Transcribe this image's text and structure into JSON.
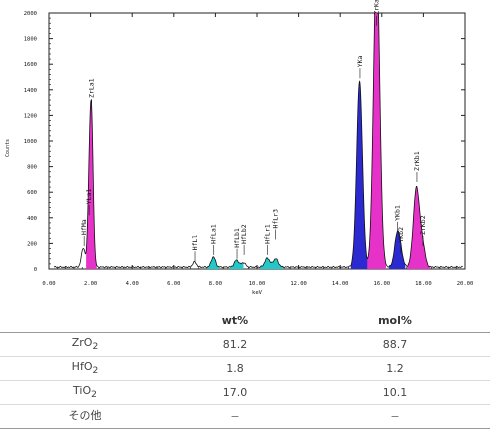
{
  "chart_data": {
    "type": "area",
    "title": "",
    "xlabel": "keV",
    "ylabel": "Counts",
    "xlim": [
      0,
      20
    ],
    "ylim": [
      0,
      2000
    ],
    "x_ticks": [
      "0.00",
      "2.00",
      "4.00",
      "6.00",
      "8.00",
      "10.00",
      "12.00",
      "14.00",
      "16.00",
      "18.00",
      "20.00"
    ],
    "y_ticks": [
      "0",
      "200",
      "400",
      "600",
      "800",
      "1000",
      "1200",
      "1400",
      "1600",
      "1800",
      "2000"
    ],
    "background_counts": 15,
    "colors": {
      "Zr": "#e632c8",
      "Hf": "#25c8c8",
      "Y": "#2a2ad0",
      "Ti": "#e632c8",
      "line": "#111111",
      "axis": "#222222"
    },
    "peaks": [
      {
        "id": "hf-ma",
        "element": "Hf",
        "energy": 1.65,
        "height": 150,
        "width": 0.09,
        "fill": false
      },
      {
        "id": "zr-la1",
        "element": "Zr",
        "energy": 2.04,
        "height": 1200,
        "width": 0.085,
        "fill": true
      },
      {
        "id": "y-la1",
        "element": "Y",
        "energy": 1.92,
        "height": 380,
        "width": 0.07,
        "fill": false
      },
      {
        "id": "hf-ll",
        "element": "Hf",
        "energy": 7.0,
        "height": 40,
        "width": 0.09,
        "fill": false
      },
      {
        "id": "hf-la1",
        "element": "Hf",
        "energy": 7.9,
        "height": 80,
        "width": 0.1,
        "fill": true
      },
      {
        "id": "hf-lb1",
        "element": "Hf",
        "energy": 9.02,
        "height": 55,
        "width": 0.11,
        "fill": true
      },
      {
        "id": "hf-lb2",
        "element": "Hf",
        "energy": 9.35,
        "height": 35,
        "width": 0.1,
        "fill": false
      },
      {
        "id": "hf-lr1",
        "element": "Hf",
        "energy": 10.5,
        "height": 70,
        "width": 0.12,
        "fill": true
      },
      {
        "id": "hf-lr3",
        "element": "Hf",
        "energy": 10.9,
        "height": 65,
        "width": 0.12,
        "fill": true
      },
      {
        "id": "y-ka",
        "element": "Y",
        "energy": 14.93,
        "height": 1450,
        "width": 0.14,
        "fill": true
      },
      {
        "id": "zr-ka",
        "element": "Zr",
        "energy": 15.75,
        "height": 2400,
        "width": 0.15,
        "fill": true
      },
      {
        "id": "y-kb1",
        "element": "Y",
        "energy": 16.74,
        "height": 240,
        "width": 0.13,
        "fill": true
      },
      {
        "id": "y-kb2",
        "element": "Y",
        "energy": 16.9,
        "height": 90,
        "width": 0.12,
        "fill": false
      },
      {
        "id": "zr-kb1",
        "element": "Zr",
        "energy": 17.67,
        "height": 620,
        "width": 0.15,
        "fill": true
      },
      {
        "id": "zr-kb2",
        "element": "Zr",
        "energy": 17.97,
        "height": 150,
        "width": 0.12,
        "fill": true
      }
    ],
    "annotations": [
      {
        "text": "HfMa",
        "energy": 1.69,
        "tip": 180
      },
      {
        "text": "YLa1",
        "energy": 1.93,
        "tip": 420
      },
      {
        "text": "ZrLa1",
        "energy": 2.05,
        "tip": 1250
      },
      {
        "text": "HfLl",
        "energy": 7.02,
        "tip": 60
      },
      {
        "text": "HfLa1",
        "energy": 7.92,
        "tip": 110
      },
      {
        "text": "HfLb1",
        "energy": 9.04,
        "tip": 80
      },
      {
        "text": "HfLb2",
        "energy": 9.38,
        "tip": 110
      },
      {
        "text": "HfLr1",
        "energy": 10.5,
        "tip": 110
      },
      {
        "text": "HfLr3",
        "energy": 10.88,
        "tip": 230
      },
      {
        "text": "YKa",
        "energy": 14.95,
        "tip": 1490
      },
      {
        "text": "ZrKa",
        "energy": 15.75,
        "tip": 1900
      },
      {
        "text": "YKb1",
        "energy": 16.76,
        "tip": 290
      },
      {
        "text": "YKb2",
        "energy": 16.92,
        "tip": 120
      },
      {
        "text": "ZrKb1",
        "energy": 17.69,
        "tip": 680
      },
      {
        "text": "ZrKb2",
        "energy": 17.98,
        "tip": 180
      }
    ]
  },
  "table": {
    "headers": [
      "",
      "wt%",
      "mol%"
    ],
    "rows": [
      {
        "name": "ZrO",
        "sub": "2",
        "wt": "81.2",
        "mol": "88.7"
      },
      {
        "name": "HfO",
        "sub": "2",
        "wt": "1.8",
        "mol": "1.2"
      },
      {
        "name": "TiO",
        "sub": "2",
        "wt": "17.0",
        "mol": "10.1"
      },
      {
        "name": "その他",
        "sub": "",
        "wt": "−",
        "mol": "−"
      }
    ]
  }
}
